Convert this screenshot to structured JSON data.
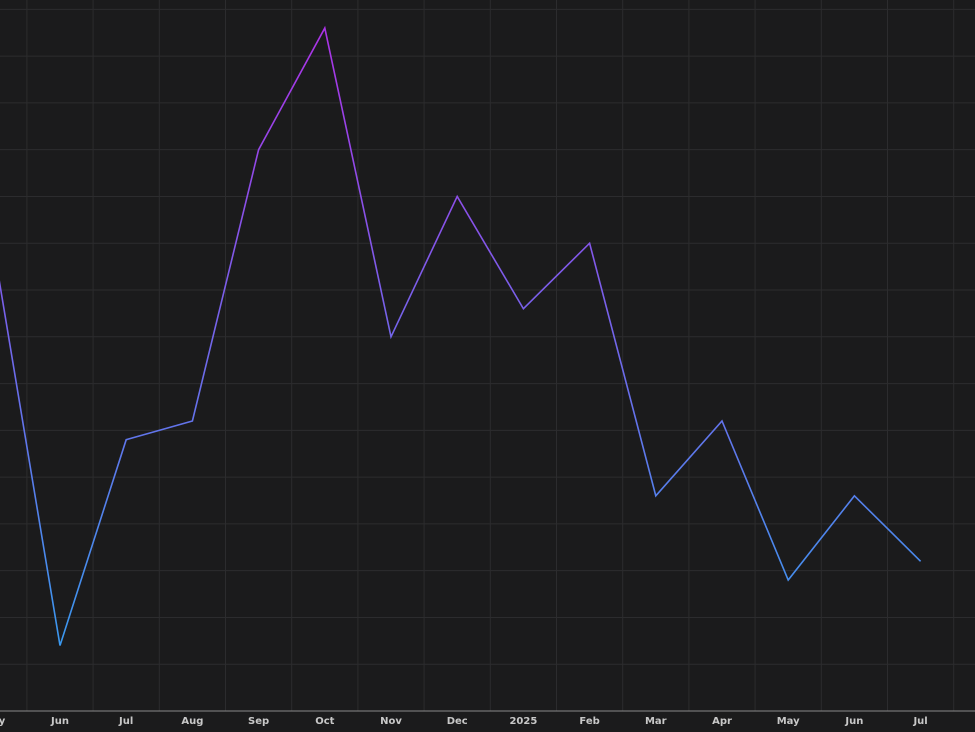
{
  "chart_data": {
    "type": "line",
    "categories": [
      "May",
      "Jun",
      "Jul",
      "Aug",
      "Sep",
      "Oct",
      "Nov",
      "Dec",
      "2025",
      "Feb",
      "Mar",
      "Apr",
      "May",
      "Jun",
      "Jul"
    ],
    "series": [
      {
        "colors": [
          "#b12ee6",
          "#2ea3ef"
        ],
        "values": [
          9.9,
          1.4,
          5.8,
          6.2,
          12.0,
          14.6,
          8.0,
          11.0,
          8.6,
          10.0,
          4.6,
          6.2,
          2.8,
          4.6,
          3.2
        ]
      }
    ],
    "ylim": [
      0,
      15.2
    ],
    "yticks": [
      1,
      2,
      3,
      4,
      5,
      6,
      7,
      8,
      9,
      10,
      11,
      12,
      13,
      14,
      15
    ],
    "grid": true
  }
}
